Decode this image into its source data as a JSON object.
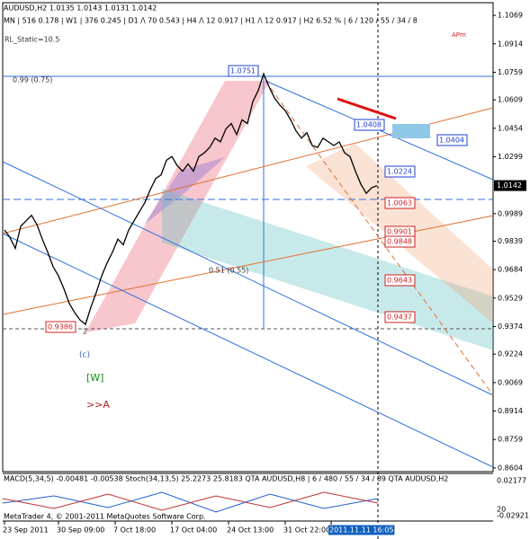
{
  "chart_data": {
    "type": "line",
    "title": "AUDUSD,H2  1.0135 1.0143 1.0131 1.0142",
    "subtitle": "MN | 516   0.178  |  W1 | 376   0.245  |  D1 /\\ 70   0.543  |  H4 /\\ 12   0.917  |  H1 /\\ 12   0.917  |  H2   6.52 %  |  6 / 120 / 55 / 34 / 8",
    "series": [
      {
        "name": "AUDUSD,H2",
        "color": "#000000",
        "values": [
          0.99,
          0.986,
          0.98,
          0.992,
          0.995,
          0.998,
          0.993,
          0.985,
          0.978,
          0.97,
          0.965,
          0.958,
          0.95,
          0.945,
          0.941,
          0.9386,
          0.948,
          0.956,
          0.965,
          0.972,
          0.978,
          0.985,
          0.982,
          0.99,
          0.995,
          1.0,
          1.005,
          1.012,
          1.018,
          1.02,
          1.028,
          1.03,
          1.025,
          1.022,
          1.026,
          1.022,
          1.03,
          1.032,
          1.035,
          1.04,
          1.038,
          1.045,
          1.048,
          1.042,
          1.05,
          1.048,
          1.06,
          1.066,
          1.0751,
          1.068,
          1.062,
          1.058,
          1.055,
          1.05,
          1.044,
          1.04,
          1.043,
          1.036,
          1.035,
          1.04,
          1.038,
          1.036,
          1.038,
          1.032,
          1.03,
          1.022,
          1.015,
          1.01,
          1.013,
          1.0142
        ]
      }
    ],
    "last_price": 1.0142,
    "ylim": [
      0.8584,
      1.1138
    ],
    "yticks": [
      1.1069,
      1.0914,
      1.0759,
      1.0609,
      1.0454,
      1.0299,
      0.9989,
      0.9839,
      0.9684,
      0.9529,
      0.9374,
      0.9224,
      0.9069,
      0.8914,
      0.8759,
      0.8604
    ],
    "xlim": [
      0,
      90.5
    ],
    "xticks": [
      {
        "value": 0,
        "label": "23 Sep 2011"
      },
      {
        "value": 10,
        "label": "30 Sep 09:00"
      },
      {
        "value": 20.5,
        "label": "7 Oct 18:00"
      },
      {
        "value": 31,
        "label": "17 Oct 04:00"
      },
      {
        "value": 41.5,
        "label": "24 Oct 13:00"
      },
      {
        "value": 52,
        "label": "31 Oct 22:00"
      },
      {
        "value": 60.5,
        "label": "2011.11.11 16:05"
      }
    ],
    "annotations": [
      "1.0751",
      "1.0408",
      "1.0404",
      "1.0224",
      "1.0063",
      "0.9901",
      "0.9848",
      "0.9643",
      "0.9437",
      "0.9386",
      "0.99 (0.75)",
      "0.51 (0.55)",
      "(c)",
      "[W]",
      ">>A",
      "2",
      "APm",
      "RL_Static=10.5"
    ],
    "subwindow": {
      "title": "MACD(5,34,5) -0.00481 -0.00538   Stoch(34,13,5) 25.2273 25.8183   QTA AUDUSD,H8 | 6 / 480 / 55 / 34 / 89   QTA AUDUSD,H2",
      "labels": [
        "0.02177",
        "20",
        "-0.02921"
      ],
      "footer": "MetaTrader 4, © 2001-2011 MetaQuotes Software Corp."
    }
  }
}
